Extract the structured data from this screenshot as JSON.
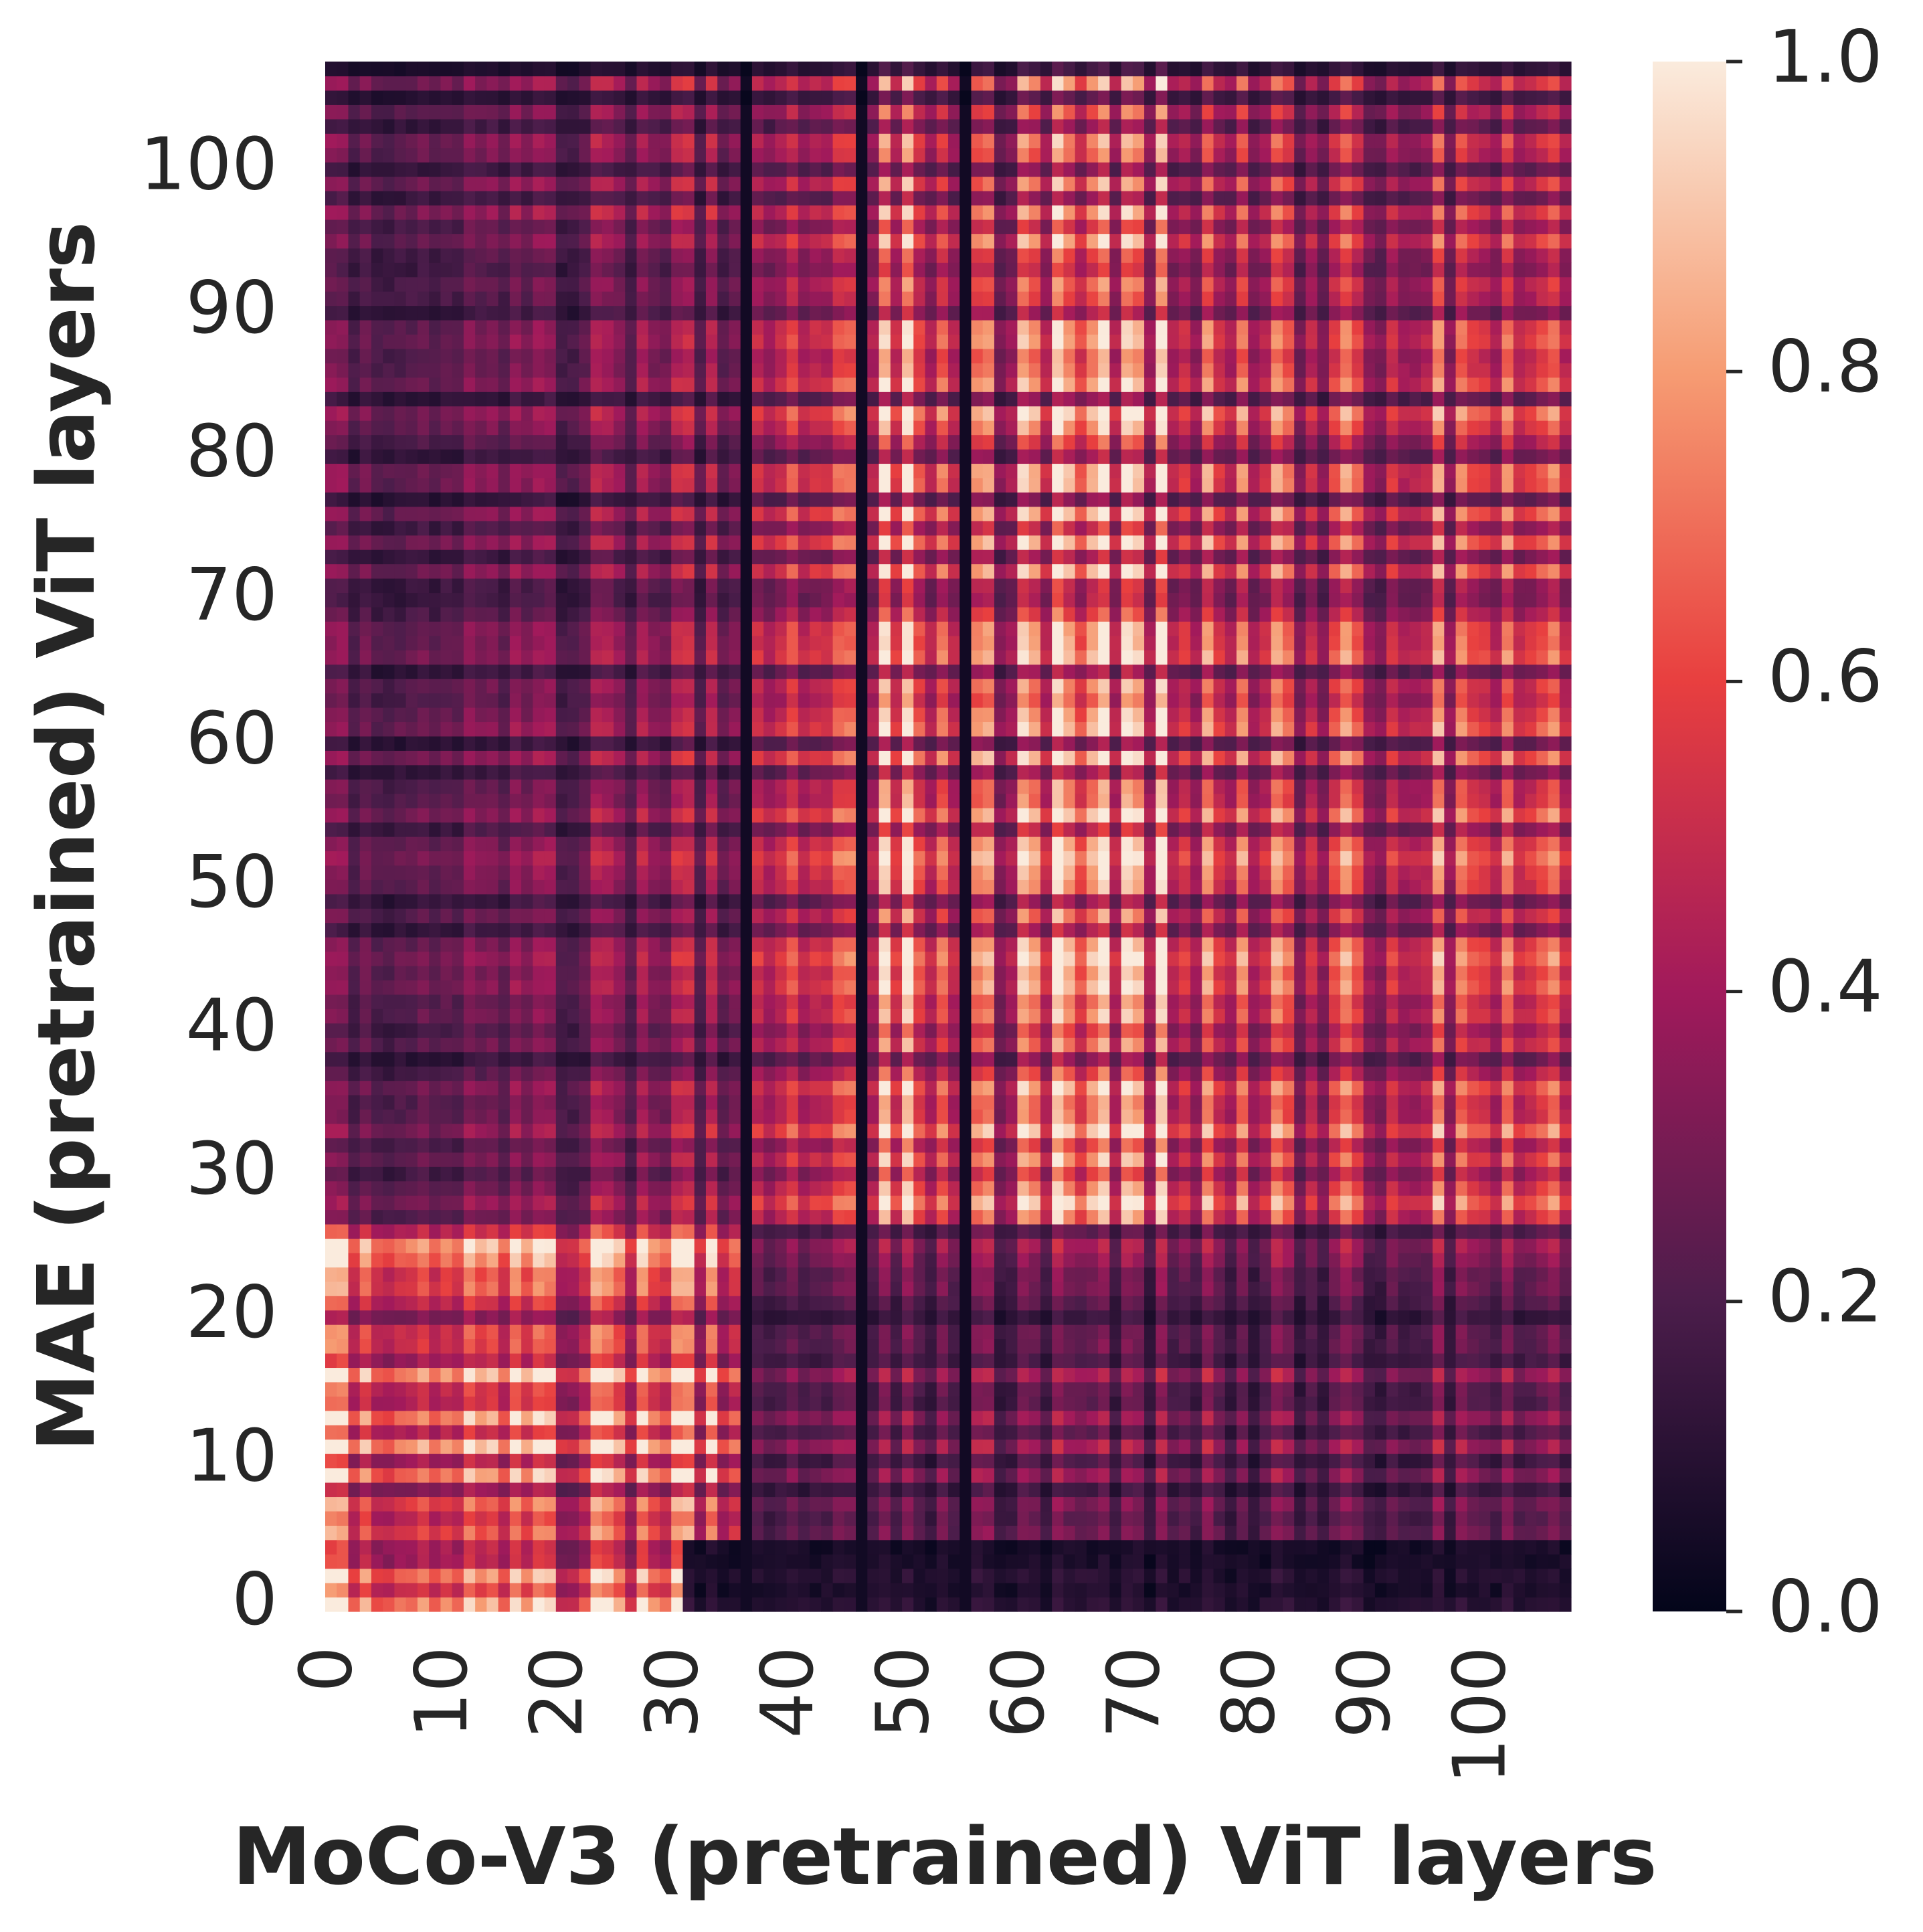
{
  "chart_data": {
    "type": "heatmap",
    "xlabel": "MoCo-V3 (pretrained) ViT layers",
    "ylabel": "MAE (pretrained) ViT layers",
    "grid": false,
    "x_count": 108,
    "y_count": 108,
    "x_ticks": [
      0,
      10,
      20,
      30,
      40,
      50,
      60,
      70,
      80,
      90,
      100
    ],
    "y_ticks": [
      0,
      10,
      20,
      30,
      40,
      50,
      60,
      70,
      80,
      90,
      100
    ],
    "colorbar": {
      "placement": "right",
      "range": [
        0.0,
        1.0
      ],
      "ticks": [
        "0.0",
        "0.2",
        "0.4",
        "0.6",
        "0.8",
        "1.0"
      ],
      "colormap": "rocket",
      "color_stops": [
        "#03051a",
        "#4c1d4b",
        "#a11a5b",
        "#e83f3f",
        "#f69c73",
        "#faebdd"
      ]
    },
    "dark_columns": [
      36,
      46,
      55
    ],
    "block_boundaries": [
      4,
      27,
      36
    ],
    "value_summary": {
      "bottom_rows_0_4_left_cols_0_30": 0.8,
      "rows_5_26_left_cols_0_36": 0.6,
      "rows_27_107_left_cols_0_36": 0.2,
      "rows_27_107_cols_37_107": 0.45,
      "rows_0_26_right_cols_37_107": 0.25,
      "rows_0_4_right_cols_37_107": 0.1
    }
  }
}
